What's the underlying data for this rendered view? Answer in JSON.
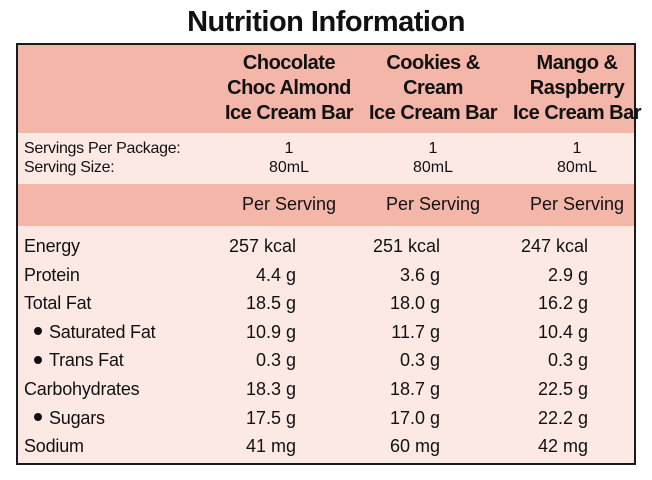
{
  "title": "Nutrition Information",
  "products": [
    {
      "lines": [
        "Chocolate",
        "Choc Almond",
        "Ice Cream Bar"
      ]
    },
    {
      "lines": [
        "Cookies &",
        "Cream",
        "Ice Cream Bar"
      ]
    },
    {
      "lines": [
        "Mango &",
        "Raspberry",
        "Ice Cream Bar"
      ]
    }
  ],
  "servings": {
    "per_package_label": "Servings Per Package:",
    "size_label": "Serving Size:",
    "per_package": [
      "1",
      "1",
      "1"
    ],
    "size": [
      "80mL",
      "80mL",
      "80mL"
    ]
  },
  "per_serving_label": "Per Serving",
  "nutrients": [
    {
      "name": "Energy",
      "sub": false,
      "values": [
        "257 kcal",
        "251 kcal",
        "247 kcal"
      ]
    },
    {
      "name": "Protein",
      "sub": false,
      "values": [
        "4.4 g",
        "3.6 g",
        "2.9 g"
      ]
    },
    {
      "name": "Total Fat",
      "sub": false,
      "values": [
        "18.5 g",
        "18.0 g",
        "16.2 g"
      ]
    },
    {
      "name": "Saturated Fat",
      "sub": true,
      "values": [
        "10.9 g",
        "11.7 g",
        "10.4 g"
      ]
    },
    {
      "name": "Trans Fat",
      "sub": true,
      "values": [
        "0.3 g",
        "0.3 g",
        "0.3 g"
      ]
    },
    {
      "name": "Carbohydrates",
      "sub": false,
      "values": [
        "18.3 g",
        "18.7 g",
        "22.5 g"
      ]
    },
    {
      "name": "Sugars",
      "sub": true,
      "values": [
        "17.5 g",
        "17.0 g",
        "22.2 g"
      ]
    },
    {
      "name": "Sodium",
      "sub": false,
      "values": [
        "41 mg",
        "60 mg",
        "42 mg"
      ]
    }
  ],
  "colors": {
    "header_band": "#f4b6a8",
    "body_band": "#fce9e4",
    "border": "#1a1a1a"
  }
}
